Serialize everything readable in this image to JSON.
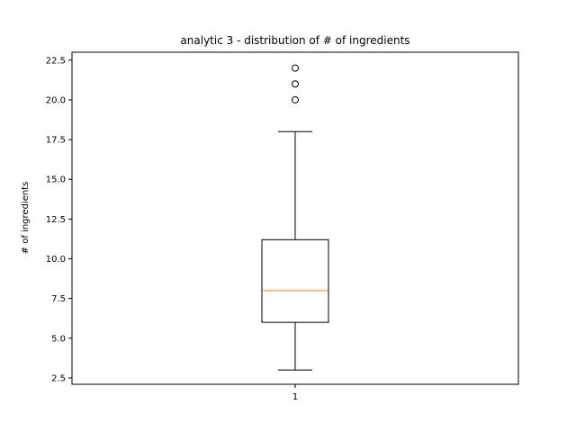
{
  "chart_data": {
    "type": "box",
    "title": "analytic 3 - distribution of # of ingredients",
    "xlabel": "",
    "ylabel": "# of ingredients",
    "ylim": [
      2.1,
      23.0
    ],
    "y_ticks": [
      "2.5",
      "5.0",
      "7.5",
      "10.0",
      "12.5",
      "15.0",
      "17.5",
      "20.0",
      "22.5"
    ],
    "y_tick_values": [
      2.5,
      5.0,
      7.5,
      10.0,
      12.5,
      15.0,
      17.5,
      20.0,
      22.5
    ],
    "categories": [
      "1"
    ],
    "boxes": [
      {
        "whisker_low": 3,
        "q1": 6,
        "median": 8,
        "q3": 11.2,
        "whisker_high": 18,
        "outliers": [
          20,
          21,
          22
        ]
      }
    ],
    "colors": {
      "box": "#000000",
      "median": "#ff7f0e",
      "outlier": "#000000"
    },
    "grid": false
  }
}
